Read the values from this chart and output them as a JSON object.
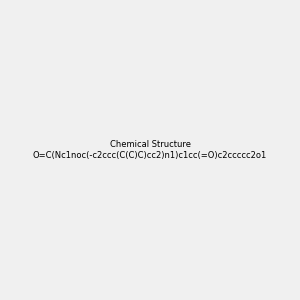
{
  "smiles": "O=C(Nc1noc(-c2ccc(C(C)C)cc2)n1)c1cc(=O)c2ccccc2o1",
  "image_size": 300,
  "background_color": "#f0f0f0"
}
